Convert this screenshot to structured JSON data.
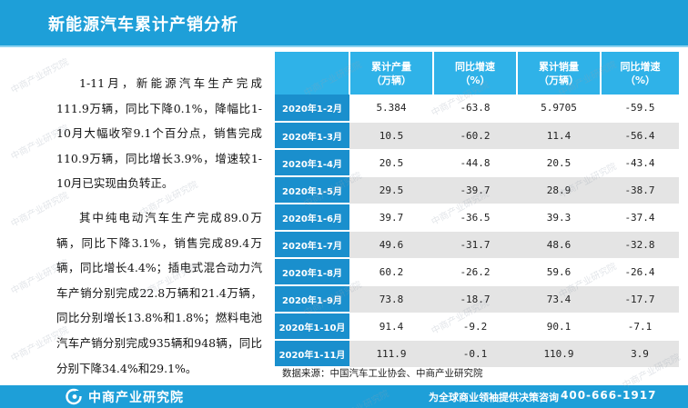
{
  "header": {
    "title": "新能源汽车累计产销分析"
  },
  "paragraphs": [
    "1-11月，新能源汽车生产完成111.9万辆，同比下降0.1%，降幅比1-10月大幅收窄9.1个百分点，销售完成110.9万辆，同比增长3.9%，增速较1-10月已实现由负转正。",
    "其中纯电动汽车生产完成89.0万辆，同比下降3.1%，销售完成89.4万辆，同比增长4.4%；插电式混合动力汽车产销分别完成22.8万辆和21.4万辆，同比分别增长13.8%和1.8%；燃料电池汽车产销分别完成935辆和948辆，同比分别下降34.4%和29.1%。"
  ],
  "table": {
    "headers": [
      "",
      "累计产量\n（万辆）",
      "同比增速\n（%）",
      "累计销量\n（万辆）",
      "同比增速\n（%）"
    ]
  },
  "chart_data": {
    "type": "table",
    "columns": [
      "累计产量（万辆）",
      "同比增速（%）",
      "累计销量（万辆）",
      "同比增速（%）"
    ],
    "rows": [
      {
        "period": "2020年1-2月",
        "values": [
          "5.384",
          "-63.8",
          "5.9705",
          "-59.5"
        ]
      },
      {
        "period": "2020年1-3月",
        "values": [
          "10.5",
          "-60.2",
          "11.4",
          "-56.4"
        ]
      },
      {
        "period": "2020年1-4月",
        "values": [
          "20.5",
          "-44.8",
          "20.5",
          "-43.4"
        ]
      },
      {
        "period": "2020年1-5月",
        "values": [
          "29.5",
          "-39.7",
          "28.9",
          "-38.7"
        ]
      },
      {
        "period": "2020年1-6月",
        "values": [
          "39.7",
          "-36.5",
          "39.3",
          "-37.4"
        ]
      },
      {
        "period": "2020年1-7月",
        "values": [
          "49.6",
          "-31.7",
          "48.6",
          "-32.8"
        ]
      },
      {
        "period": "2020年1-8月",
        "values": [
          "60.2",
          "-26.2",
          "59.6",
          "-26.4"
        ]
      },
      {
        "period": "2020年1-9月",
        "values": [
          "73.8",
          "-18.7",
          "73.4",
          "-17.7"
        ]
      },
      {
        "period": "2020年1-10月",
        "values": [
          "91.4",
          "-9.2",
          "90.1",
          "-7.1"
        ]
      },
      {
        "period": "2020年1-11月",
        "values": [
          "111.9",
          "-0.1",
          "110.9",
          "3.9"
        ]
      }
    ]
  },
  "source": "数据来源：中国汽车工业协会、中商产业研究院",
  "footer": {
    "logo_text": "中商产业研究院",
    "slogan": "为全球商业领袖提供决策咨询",
    "phone": "400-666-1917"
  },
  "watermark": {
    "text": "中商产业研究院"
  },
  "colors": {
    "header_blue": "#1e9fd8",
    "table_header": "#2fb2e8",
    "period_cell": "#1a8fcd",
    "stripe": "#e4e4e4"
  },
  "icons": {
    "logo": "zhongshang-logo-icon"
  }
}
